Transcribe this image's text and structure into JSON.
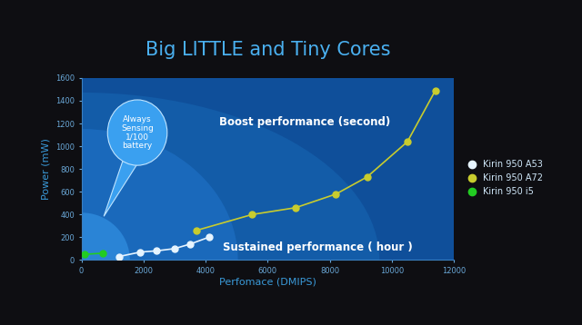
{
  "chart_data": {
    "type": "line",
    "title": "Big LITTLE and Tiny Cores",
    "x_label": "Perfomace (DMIPS)",
    "y_label": "Power (mW)",
    "xlim": [
      0,
      12000
    ],
    "ylim": [
      0,
      1600
    ],
    "xticks": [
      0,
      2000,
      4000,
      6000,
      8000,
      10000,
      12000
    ],
    "yticks": [
      0,
      200,
      400,
      600,
      800,
      1000,
      1200,
      1400,
      1600
    ],
    "grid": false,
    "legend": "center left",
    "marker": "o",
    "annotations": [
      "Always Sensing 1/100 battery",
      "Boost performance (second)",
      "Sustained performance ( hour )"
    ],
    "series": [
      {
        "name": "Kirin 950 A53",
        "color": "#e6f4ff",
        "x": [
          1200,
          1900,
          2400,
          3000,
          3500,
          4100
        ],
        "values": [
          30,
          70,
          80,
          100,
          140,
          200
        ]
      },
      {
        "name": "Kirin 950 A72",
        "color": "#c8cc2e",
        "x": [
          3700,
          5500,
          6900,
          8200,
          9200,
          10500,
          11400
        ],
        "values": [
          260,
          400,
          460,
          580,
          730,
          1040,
          1490
        ]
      },
      {
        "name": "Kirin 950 i5",
        "color": "#22cc22",
        "x": [
          100,
          700
        ],
        "values": [
          50,
          60
        ]
      }
    ]
  }
}
